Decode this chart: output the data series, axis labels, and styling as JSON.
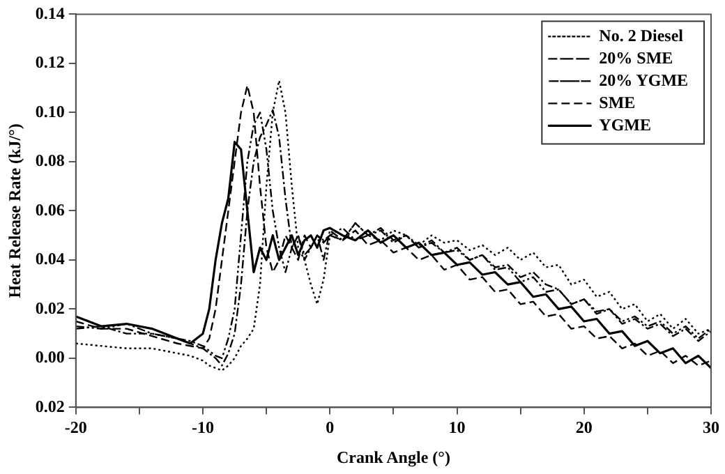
{
  "chart_data": {
    "type": "line",
    "xlabel": "Crank Angle (°)",
    "ylabel": "Heat Release Rate (kJ/°)",
    "x": [
      -20,
      -18,
      -16,
      -14,
      -12,
      -11,
      -10,
      -9.5,
      -9,
      -8.5,
      -8,
      -7.5,
      -7,
      -6.5,
      -6,
      -5.5,
      -5,
      -4.5,
      -4,
      -3.5,
      -3,
      -2.5,
      -2,
      -1.5,
      -1,
      -0.5,
      0,
      1,
      2,
      3,
      4,
      5,
      6,
      7,
      8,
      9,
      10,
      11,
      12,
      13,
      14,
      15,
      16,
      17,
      18,
      19,
      20,
      21,
      22,
      23,
      24,
      25,
      26,
      27,
      28,
      29,
      30
    ],
    "series": [
      {
        "name": "No. 2 Diesel",
        "color": "#000000",
        "line_style": "dotted",
        "values": [
          0.006,
          0.005,
          0.004,
          0.004,
          0.002,
          0.001,
          -0.001,
          -0.003,
          -0.004,
          -0.005,
          -0.003,
          0.0,
          0.005,
          0.008,
          0.012,
          0.03,
          0.07,
          0.1,
          0.113,
          0.1,
          0.07,
          0.045,
          0.04,
          0.03,
          0.022,
          0.032,
          0.05,
          0.048,
          0.055,
          0.05,
          0.048,
          0.052,
          0.05,
          0.046,
          0.05,
          0.047,
          0.048,
          0.044,
          0.046,
          0.042,
          0.045,
          0.04,
          0.043,
          0.037,
          0.038,
          0.03,
          0.032,
          0.025,
          0.027,
          0.02,
          0.022,
          0.015,
          0.018,
          0.012,
          0.016,
          0.01,
          0.012
        ]
      },
      {
        "name": "20% SME",
        "color": "#000000",
        "line_style": "dashdot",
        "values": [
          0.012,
          0.013,
          0.01,
          0.01,
          0.008,
          0.006,
          0.004,
          0.002,
          0.0,
          -0.003,
          0.002,
          0.01,
          0.03,
          0.06,
          0.08,
          0.09,
          0.095,
          0.101,
          0.09,
          0.065,
          0.045,
          0.05,
          0.042,
          0.045,
          0.05,
          0.04,
          0.052,
          0.048,
          0.055,
          0.05,
          0.053,
          0.048,
          0.05,
          0.045,
          0.048,
          0.043,
          0.045,
          0.04,
          0.042,
          0.037,
          0.038,
          0.033,
          0.035,
          0.03,
          0.028,
          0.022,
          0.024,
          0.018,
          0.02,
          0.014,
          0.016,
          0.012,
          0.014,
          0.009,
          0.012,
          0.007,
          0.011
        ]
      },
      {
        "name": "20% YGME",
        "color": "#000000",
        "line_style": "dashdotdot",
        "values": [
          0.013,
          0.012,
          0.014,
          0.01,
          0.008,
          0.007,
          0.005,
          0.003,
          0.001,
          0.0,
          0.008,
          0.02,
          0.05,
          0.08,
          0.095,
          0.1,
          0.085,
          0.06,
          0.045,
          0.035,
          0.045,
          0.05,
          0.04,
          0.045,
          0.05,
          0.048,
          0.05,
          0.053,
          0.048,
          0.05,
          0.052,
          0.047,
          0.05,
          0.045,
          0.047,
          0.043,
          0.044,
          0.04,
          0.042,
          0.036,
          0.037,
          0.031,
          0.033,
          0.027,
          0.028,
          0.022,
          0.024,
          0.019,
          0.02,
          0.015,
          0.017,
          0.013,
          0.015,
          0.01,
          0.013,
          0.008,
          0.012
        ]
      },
      {
        "name": "SME",
        "color": "#000000",
        "line_style": "dashed",
        "values": [
          0.015,
          0.012,
          0.012,
          0.009,
          0.006,
          0.005,
          0.004,
          0.008,
          0.02,
          0.04,
          0.06,
          0.08,
          0.1,
          0.111,
          0.1,
          0.07,
          0.045,
          0.035,
          0.04,
          0.05,
          0.045,
          0.04,
          0.05,
          0.045,
          0.05,
          0.047,
          0.05,
          0.048,
          0.052,
          0.046,
          0.048,
          0.043,
          0.045,
          0.04,
          0.042,
          0.036,
          0.038,
          0.032,
          0.033,
          0.027,
          0.028,
          0.022,
          0.023,
          0.017,
          0.018,
          0.012,
          0.013,
          0.008,
          0.009,
          0.004,
          0.006,
          0.001,
          0.003,
          -0.002,
          0.001,
          -0.003,
          -0.001
        ]
      },
      {
        "name": "YGME",
        "color": "#000000",
        "line_style": "solid",
        "values": [
          0.017,
          0.013,
          0.014,
          0.012,
          0.008,
          0.006,
          0.01,
          0.02,
          0.04,
          0.055,
          0.065,
          0.088,
          0.085,
          0.06,
          0.035,
          0.045,
          0.04,
          0.05,
          0.04,
          0.045,
          0.05,
          0.042,
          0.048,
          0.05,
          0.045,
          0.052,
          0.053,
          0.05,
          0.048,
          0.052,
          0.047,
          0.05,
          0.045,
          0.047,
          0.042,
          0.043,
          0.038,
          0.039,
          0.034,
          0.035,
          0.03,
          0.031,
          0.025,
          0.026,
          0.02,
          0.021,
          0.015,
          0.016,
          0.01,
          0.011,
          0.005,
          0.007,
          0.002,
          0.004,
          -0.002,
          0.001,
          -0.004
        ]
      }
    ],
    "xlim": [
      -20,
      30
    ],
    "xticks": [
      -20,
      {
        "value": -15,
        "label": null
      },
      -10,
      {
        "value": -5,
        "label": null
      },
      0,
      {
        "value": 5,
        "label": null
      },
      10,
      {
        "value": 15,
        "label": null
      },
      20,
      {
        "value": 25,
        "label": null
      },
      30
    ],
    "ylim": [
      -0.02,
      0.14
    ],
    "yticks": [
      {
        "value": -0.02,
        "label": "0.02"
      },
      {
        "value": 0,
        "label": "0.00"
      },
      0.02,
      0.04,
      0.06,
      0.08,
      {
        "value": 0.1,
        "label": "0.10"
      },
      0.12,
      0.14
    ],
    "grid": false,
    "legend": "top right",
    "marker": "none"
  }
}
